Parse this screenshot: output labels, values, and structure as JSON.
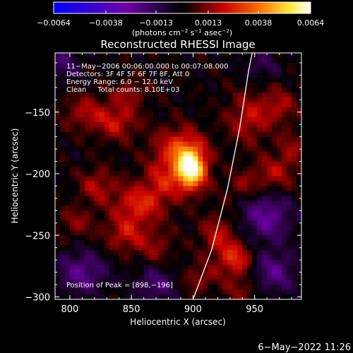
{
  "chart_data": {
    "type": "heatmap",
    "title": "Reconstructed RHESSI Image",
    "xlabel": "Heliocentric X (arcsec)",
    "ylabel": "Heliocentric Y (arcsec)",
    "xlim": [
      788,
      988
    ],
    "ylim": [
      -302,
      -102
    ],
    "x_ticks": [
      800,
      850,
      900,
      950
    ],
    "y_ticks": [
      -150,
      -200,
      -250,
      -300
    ],
    "x_tick_labels": [
      "800",
      "850",
      "900",
      "950"
    ],
    "y_tick_labels": [
      "−150",
      "−200",
      "−250",
      "−300"
    ],
    "colorbar": {
      "min": -0.0064,
      "max": 0.0064,
      "ticks": [
        -0.0064,
        -0.0038,
        -0.0013,
        0.0013,
        0.0038,
        0.0064
      ],
      "tick_labels": [
        "−0.0064",
        "−0.0038",
        "−0.0013",
        "0.0013",
        "0.0038",
        "0.0064"
      ],
      "unit_base": "(photons cm",
      "unit_exp1": "−2",
      "unit_mid": " s",
      "unit_exp2": "−1",
      "unit_mid2": " asec",
      "unit_exp3": "−2",
      "unit_end": ")"
    },
    "annotations": [
      "11−May−2006 00:06:00.000 to 00:07:08.000",
      "Detectors: 3F 4F 5F 6F 7F 8F, Att 0",
      "Energy Range: 6.0 − 12.0 keV",
      "Clean     Total counts: 8.10E+03"
    ],
    "peak_label": "Position of Peak = [898,−196]",
    "peak": [
      898,
      -196
    ],
    "limb_curve": [
      [
        900,
        -302
      ],
      [
        915,
        -262
      ],
      [
        928,
        -212
      ],
      [
        938,
        -162
      ],
      [
        945,
        -117
      ],
      [
        948,
        -102
      ]
    ],
    "sources": [
      {
        "x": 898,
        "y": -196,
        "amp": 0.0064,
        "sx": 9,
        "sy": 12
      },
      {
        "x": 888,
        "y": -178,
        "amp": 0.0022,
        "sx": 14,
        "sy": 12
      },
      {
        "x": 855,
        "y": -225,
        "amp": 0.0024,
        "sx": 14,
        "sy": 12
      },
      {
        "x": 875,
        "y": -205,
        "amp": 0.0018,
        "sx": 10,
        "sy": 14
      },
      {
        "x": 838,
        "y": -158,
        "amp": 0.002,
        "sx": 12,
        "sy": 10
      },
      {
        "x": 812,
        "y": -150,
        "amp": 0.0016,
        "sx": 12,
        "sy": 10
      },
      {
        "x": 848,
        "y": -135,
        "amp": 0.0014,
        "sx": 10,
        "sy": 8
      },
      {
        "x": 822,
        "y": -210,
        "amp": 0.0017,
        "sx": 10,
        "sy": 10
      },
      {
        "x": 805,
        "y": -240,
        "amp": 0.0013,
        "sx": 10,
        "sy": 8
      },
      {
        "x": 845,
        "y": -250,
        "amp": 0.0018,
        "sx": 12,
        "sy": 10
      },
      {
        "x": 870,
        "y": -260,
        "amp": 0.0012,
        "sx": 10,
        "sy": 10
      },
      {
        "x": 945,
        "y": -155,
        "amp": 0.0019,
        "sx": 12,
        "sy": 14
      },
      {
        "x": 970,
        "y": -145,
        "amp": 0.0016,
        "sx": 10,
        "sy": 10
      },
      {
        "x": 965,
        "y": -200,
        "amp": 0.0017,
        "sx": 12,
        "sy": 10
      },
      {
        "x": 980,
        "y": -180,
        "amp": 0.0013,
        "sx": 8,
        "sy": 10
      },
      {
        "x": 940,
        "y": -210,
        "amp": 0.0012,
        "sx": 10,
        "sy": 8
      },
      {
        "x": 935,
        "y": -270,
        "amp": 0.0026,
        "sx": 10,
        "sy": 10
      },
      {
        "x": 920,
        "y": -250,
        "amp": 0.0018,
        "sx": 10,
        "sy": 12
      },
      {
        "x": 905,
        "y": -285,
        "amp": 0.0014,
        "sx": 10,
        "sy": 8
      },
      {
        "x": 940,
        "y": -295,
        "amp": 0.0012,
        "sx": 10,
        "sy": 8
      },
      {
        "x": 810,
        "y": -280,
        "amp": -0.0022,
        "sx": 14,
        "sy": 12
      },
      {
        "x": 960,
        "y": -235,
        "amp": -0.0024,
        "sx": 14,
        "sy": 14
      },
      {
        "x": 965,
        "y": -280,
        "amp": -0.002,
        "sx": 14,
        "sy": 12
      },
      {
        "x": 870,
        "y": -290,
        "amp": -0.0018,
        "sx": 12,
        "sy": 10
      },
      {
        "x": 795,
        "y": -110,
        "amp": -0.0015,
        "sx": 10,
        "sy": 10
      },
      {
        "x": 955,
        "y": -112,
        "amp": -0.0012,
        "sx": 10,
        "sy": 8
      }
    ]
  },
  "footer": {
    "timestamp": "6−May−2022 11:26"
  }
}
